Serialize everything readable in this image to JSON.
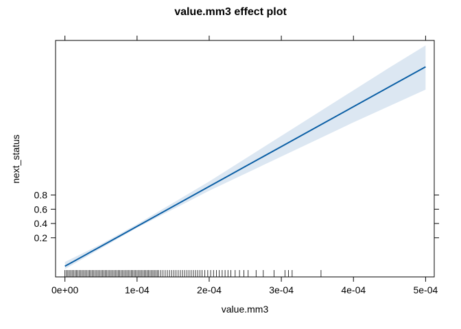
{
  "chart_data": {
    "type": "line",
    "title": "value.mm3 effect plot",
    "xlabel": "value.mm3",
    "ylabel": "next_status",
    "xlim": [
      -1.3e-05,
      0.000512
    ],
    "ylim": [
      -0.35,
      2.97
    ],
    "x_ticks": [
      0,
      0.0001,
      0.0002,
      0.0003,
      0.0004,
      0.0005
    ],
    "x_tick_labels": [
      "0e+00",
      "1e-04",
      "2e-04",
      "3e-04",
      "4e-04",
      "5e-04"
    ],
    "y_ticks": [
      0.2,
      0.4,
      0.6,
      0.8
    ],
    "y_tick_labels": [
      "0.2",
      "0.4",
      "0.6",
      "0.8"
    ],
    "grid": false,
    "series": [
      {
        "x": [
          0,
          5e-05,
          0.0001,
          0.00015,
          0.0002,
          0.00025,
          0.0003,
          0.00035,
          0.0004,
          0.00045,
          0.0005
        ],
        "y": [
          -0.2,
          0.08,
          0.36,
          0.64,
          0.92,
          1.2,
          1.48,
          1.76,
          2.04,
          2.32,
          2.6
        ],
        "lower": [
          -0.24,
          0.05,
          0.34,
          0.6,
          0.86,
          1.1,
          1.34,
          1.58,
          1.82,
          2.05,
          2.28
        ],
        "upper": [
          -0.14,
          0.11,
          0.39,
          0.69,
          0.99,
          1.31,
          1.63,
          1.95,
          2.27,
          2.59,
          2.9
        ],
        "color": "#0b5fa5",
        "band_color": "#dce7f2"
      }
    ],
    "rug": [
      0,
      2e-06,
      4e-06,
      6e-06,
      8e-06,
      1e-05,
      1.2e-05,
      1.4e-05,
      1.6e-05,
      1.8e-05,
      2e-05,
      2.2e-05,
      2.4e-05,
      2.6e-05,
      2.8e-05,
      3e-05,
      3.2e-05,
      3.4e-05,
      3.6e-05,
      3.8e-05,
      4e-05,
      4.2e-05,
      4.4e-05,
      4.6e-05,
      4.8e-05,
      5e-05,
      5.2e-05,
      5.4e-05,
      5.6e-05,
      5.8e-05,
      6e-05,
      6.2e-05,
      6.4e-05,
      6.6e-05,
      6.8e-05,
      7e-05,
      7.2e-05,
      7.4e-05,
      7.6e-05,
      7.8e-05,
      8e-05,
      8.2e-05,
      8.4e-05,
      8.6e-05,
      8.8e-05,
      9e-05,
      9.2e-05,
      9.4e-05,
      9.6e-05,
      9.8e-05,
      0.0001,
      0.000102,
      0.000104,
      0.000106,
      0.000108,
      0.00011,
      0.000112,
      0.000114,
      0.000116,
      0.000118,
      0.00012,
      0.000122,
      0.000124,
      0.000126,
      0.000128,
      0.00013,
      0.000133,
      0.000136,
      0.000139,
      0.000142,
      0.000145,
      0.000148,
      0.000151,
      0.000154,
      0.000157,
      0.00016,
      0.000163,
      0.000166,
      0.000169,
      0.000172,
      0.000175,
      0.000178,
      0.000181,
      0.000184,
      0.000187,
      0.00019,
      0.000194,
      0.000198,
      0.000202,
      0.000206,
      0.00021,
      0.000214,
      0.000218,
      0.000222,
      0.000226,
      0.00023,
      0.000236,
      0.000242,
      0.000248,
      0.000254,
      0.000265,
      0.000275,
      0.00029,
      0.000305,
      0.00031,
      0.000315,
      0.000355
    ]
  }
}
